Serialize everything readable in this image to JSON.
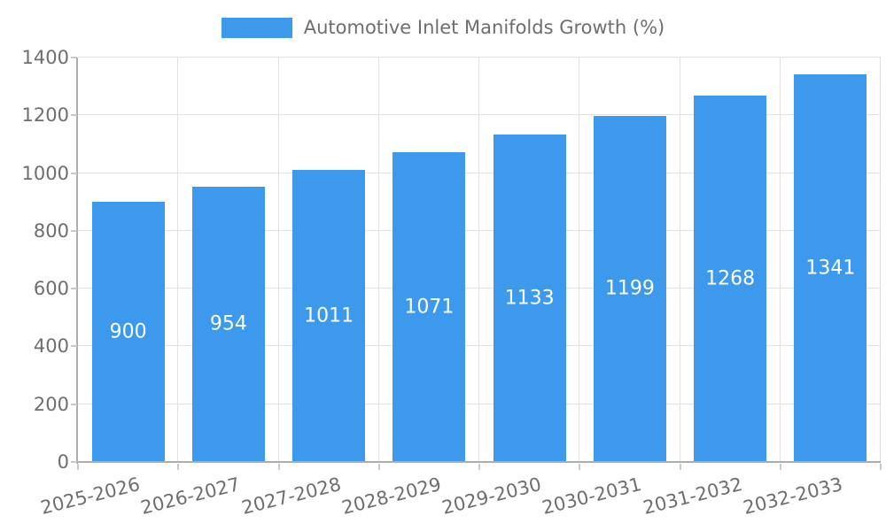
{
  "chart_data": {
    "type": "bar",
    "title": "Automotive Inlet Manifolds Growth (%)",
    "categories": [
      "2025-2026",
      "2026-2027",
      "2027-2028",
      "2028-2029",
      "2029-2030",
      "2030-2031",
      "2031-2032",
      "2032-2033"
    ],
    "values": [
      900,
      954,
      1011,
      1071,
      1133,
      1199,
      1268,
      1341
    ],
    "xlabel": "",
    "ylabel": "",
    "ylim": [
      0,
      1400
    ],
    "y_ticks": [
      0,
      200,
      400,
      600,
      800,
      1000,
      1200,
      1400
    ],
    "grid": true,
    "legend_position": "top",
    "bar_color": "#3C99EC",
    "value_label_color": "#FFFFFF",
    "axis_text_color": "#6E6E6E",
    "gridline_color": "#E2E2E2",
    "axis_line_color": "#ADADAD",
    "tick_color": "#C9C9C9"
  }
}
